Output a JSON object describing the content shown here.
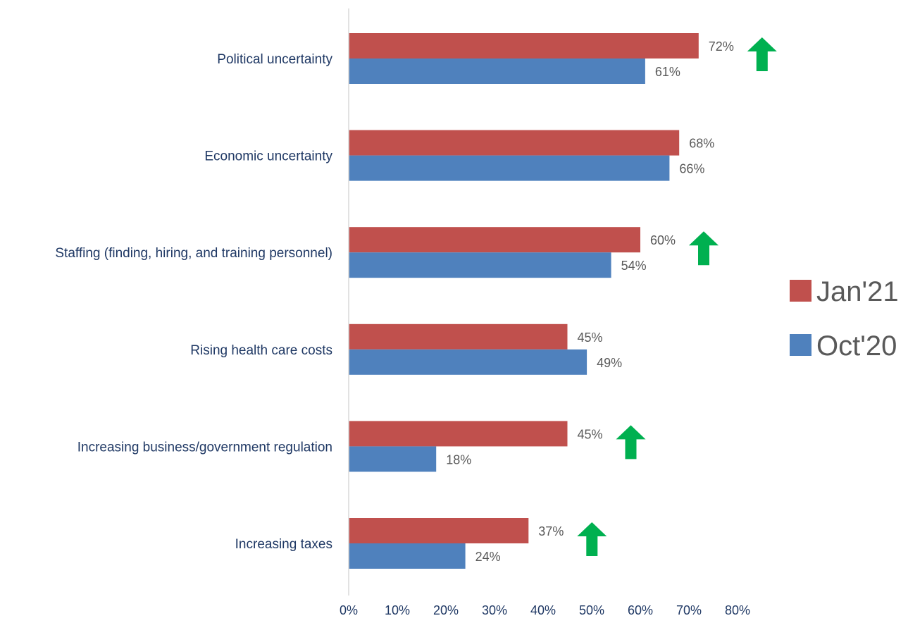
{
  "chart_data": {
    "type": "bar",
    "orientation": "horizontal",
    "categories": [
      "Political uncertainty",
      "Economic uncertainty",
      "Staffing (finding, hiring, and training personnel)",
      "Rising health care costs",
      "Increasing business/government regulation",
      "Increasing taxes"
    ],
    "series": [
      {
        "name": "Jan'21",
        "color": "#c0504d",
        "values": [
          72,
          68,
          60,
          45,
          45,
          37
        ]
      },
      {
        "name": "Oct'20",
        "color": "#4f81bd",
        "values": [
          61,
          66,
          54,
          49,
          18,
          24
        ]
      }
    ],
    "data_labels": {
      "Jan'21": [
        "72%",
        "68%",
        "60%",
        "45%",
        "45%",
        "37%"
      ],
      "Oct'20": [
        "61%",
        "66%",
        "54%",
        "49%",
        "18%",
        "24%"
      ]
    },
    "increase_arrows": [
      true,
      false,
      true,
      false,
      true,
      true
    ],
    "arrow_color": "#00b050",
    "xlim": [
      0,
      80
    ],
    "x_ticks": [
      "0%",
      "10%",
      "20%",
      "30%",
      "40%",
      "50%",
      "60%",
      "70%",
      "80%"
    ],
    "legend_position": "right",
    "grid": false,
    "title": "",
    "xlabel": "",
    "ylabel": ""
  }
}
